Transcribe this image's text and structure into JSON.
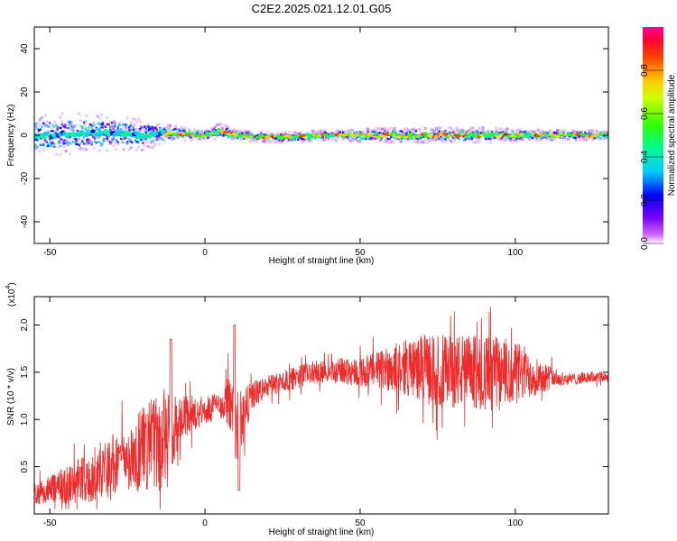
{
  "figure_title": "C2E2.2025.021.12.01.G05",
  "chart_data": [
    {
      "type": "heatmap",
      "title": "C2E2.2025.021.12.01.G05",
      "xlabel": "Height of straight line (km)",
      "ylabel": "Frequency (Hz)",
      "xlim": [
        -55,
        130
      ],
      "ylim": [
        -50,
        50
      ],
      "x_ticks": [
        -50,
        0,
        50,
        100
      ],
      "y_ticks": [
        -40,
        -20,
        0,
        20,
        40
      ],
      "grid": false,
      "description_of_data": "Spectral amplitude concentrated near 0 Hz; broad spread (about -12 to +10 Hz) between -50 and -10 km, narrow band near 0 Hz from -10 to 130 km",
      "ridge": [
        {
          "x": -52,
          "center": 0,
          "half_width": 8
        },
        {
          "x": -40,
          "center": 1,
          "half_width": 8
        },
        {
          "x": -30,
          "center": 1,
          "half_width": 7
        },
        {
          "x": -20,
          "center": 0,
          "half_width": 6
        },
        {
          "x": -10,
          "center": 1,
          "half_width": 3
        },
        {
          "x": 0,
          "center": 0,
          "half_width": 2
        },
        {
          "x": 5,
          "center": 2,
          "half_width": 3
        },
        {
          "x": 10,
          "center": 0,
          "half_width": 2
        },
        {
          "x": 25,
          "center": -1,
          "half_width": 2
        },
        {
          "x": 40,
          "center": 0,
          "half_width": 2
        },
        {
          "x": 60,
          "center": 0,
          "half_width": 3
        },
        {
          "x": 75,
          "center": 0,
          "half_width": 3
        },
        {
          "x": 90,
          "center": 0,
          "half_width": 3
        },
        {
          "x": 110,
          "center": 0,
          "half_width": 2
        },
        {
          "x": 130,
          "center": 0,
          "half_width": 2
        }
      ]
    },
    {
      "type": "line",
      "xlabel": "Height of straight line (km)",
      "ylabel": "SNR (10 * v/v)",
      "y_multiplier": "(x10",
      "y_multiplier_exp": "4",
      "xlim": [
        -55,
        130
      ],
      "ylim": [
        0,
        2.3
      ],
      "x_ticks": [
        -50,
        0,
        50,
        100
      ],
      "y_ticks": [
        0.5,
        1.0,
        1.5,
        2.0
      ],
      "grid": false,
      "series": [
        {
          "color": "#ee2c2c",
          "x": [
            -55,
            -50,
            -45,
            -40,
            -35,
            -30,
            -25,
            -20,
            -15,
            -12,
            -10,
            -5,
            0,
            5,
            8,
            10,
            12,
            15,
            20,
            25,
            30,
            35,
            40,
            45,
            50,
            55,
            60,
            65,
            70,
            75,
            80,
            85,
            90,
            95,
            100,
            105,
            110,
            115,
            120,
            125,
            130
          ],
          "baseline": [
            0.22,
            0.25,
            0.3,
            0.35,
            0.42,
            0.5,
            0.6,
            0.68,
            0.75,
            0.85,
            0.9,
            1.05,
            1.1,
            1.15,
            1.2,
            0.8,
            1.0,
            1.25,
            1.35,
            1.4,
            1.45,
            1.5,
            1.5,
            1.52,
            1.5,
            1.52,
            1.55,
            1.55,
            1.55,
            1.5,
            1.52,
            1.5,
            1.5,
            1.48,
            1.5,
            1.48,
            1.45,
            1.43,
            1.43,
            1.45,
            1.45
          ],
          "spread": [
            0.12,
            0.15,
            0.2,
            0.25,
            0.3,
            0.35,
            0.35,
            0.45,
            0.55,
            0.6,
            0.35,
            0.2,
            0.15,
            0.15,
            0.3,
            0.5,
            0.3,
            0.15,
            0.12,
            0.12,
            0.12,
            0.12,
            0.12,
            0.15,
            0.15,
            0.2,
            0.25,
            0.3,
            0.35,
            0.4,
            0.4,
            0.4,
            0.4,
            0.4,
            0.35,
            0.25,
            0.15,
            0.07,
            0.06,
            0.06,
            0.06
          ]
        }
      ]
    }
  ],
  "colorbar": {
    "label": "Normalized spectral amplitude",
    "range": [
      0,
      1
    ],
    "ticks": [
      0.0,
      0.2,
      0.4,
      0.6,
      0.8
    ]
  }
}
